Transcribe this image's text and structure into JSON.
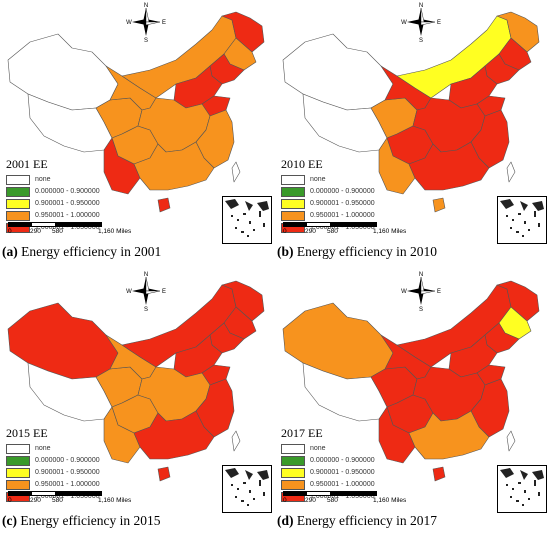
{
  "colors": {
    "none": "#ffffff",
    "c1": "#3a9a2a",
    "c2": "#ffff22",
    "c3": "#f7931e",
    "c4": "#ee2a14",
    "border": "#555555"
  },
  "legend": {
    "entries": [
      {
        "label": "none",
        "color": "#ffffff"
      },
      {
        "label": "0.000000 - 0.900000",
        "color": "#3a9a2a"
      },
      {
        "label": "0.900001 - 0.950000",
        "color": "#ffff22"
      },
      {
        "label": "0.950001 - 1.000000",
        "color": "#f7931e"
      },
      {
        "label": "1.000001 - 1.050000",
        "color": "#ee2a14"
      }
    ]
  },
  "compass_labels": {
    "n": "N",
    "e": "E",
    "s": "S",
    "w": "W"
  },
  "scalebar_ticks": [
    "0",
    "290",
    "580",
    "1,160 Miles"
  ],
  "panels": [
    {
      "letter": "(a)",
      "caption": "Energy efficiency in 2001",
      "title": "2001 EE",
      "regions": {
        "xinjiang": "#ffffff",
        "tibet": "#ffffff",
        "qinghai": "#f7931e",
        "gansu": "#f7931e",
        "neimenggu": "#f7931e",
        "heilongjiang": "#ee2a14",
        "jilin": "#f7931e",
        "liaoning": "#ee2a14",
        "north": "#ee2a14",
        "shandong": "#ee2a14",
        "central": "#f7931e",
        "sichuan": "#f7931e",
        "yunnan": "#ee2a14",
        "south": "#f7931e",
        "east": "#f7931e",
        "hainan": "#ee2a14",
        "taiwan": "#ffffff"
      }
    },
    {
      "letter": "(b)",
      "caption": "Energy efficiency in 2010",
      "title": "2010 EE",
      "regions": {
        "xinjiang": "#ffffff",
        "tibet": "#ffffff",
        "qinghai": "#f7931e",
        "gansu": "#ee2a14",
        "neimenggu": "#ffff22",
        "heilongjiang": "#f7931e",
        "jilin": "#ee2a14",
        "liaoning": "#ee2a14",
        "north": "#ee2a14",
        "shandong": "#ee2a14",
        "central": "#ee2a14",
        "sichuan": "#ee2a14",
        "yunnan": "#f7931e",
        "south": "#ee2a14",
        "east": "#ee2a14",
        "hainan": "#f7931e",
        "taiwan": "#ffffff"
      }
    },
    {
      "letter": "(c)",
      "caption": "Energy efficiency in 2015",
      "title": "2015 EE",
      "regions": {
        "xinjiang": "#ee2a14",
        "tibet": "#ffffff",
        "qinghai": "#f7931e",
        "gansu": "#f7931e",
        "neimenggu": "#ee2a14",
        "heilongjiang": "#ee2a14",
        "jilin": "#ee2a14",
        "liaoning": "#ee2a14",
        "north": "#ee2a14",
        "shandong": "#ee2a14",
        "central": "#f7931e",
        "sichuan": "#f7931e",
        "yunnan": "#f7931e",
        "south": "#ee2a14",
        "east": "#ee2a14",
        "hainan": "#ee2a14",
        "taiwan": "#ffffff"
      }
    },
    {
      "letter": "(d)",
      "caption": "Energy efficiency in 2017",
      "title": "2017 EE",
      "regions": {
        "xinjiang": "#f7931e",
        "tibet": "#ffffff",
        "qinghai": "#ee2a14",
        "gansu": "#ee2a14",
        "neimenggu": "#ee2a14",
        "heilongjiang": "#ee2a14",
        "jilin": "#ffff22",
        "liaoning": "#ee2a14",
        "north": "#ee2a14",
        "shandong": "#ee2a14",
        "central": "#ee2a14",
        "sichuan": "#ee2a14",
        "yunnan": "#ee2a14",
        "south": "#f7931e",
        "east": "#ee2a14",
        "hainan": "#ee2a14",
        "taiwan": "#ffffff"
      }
    }
  ]
}
